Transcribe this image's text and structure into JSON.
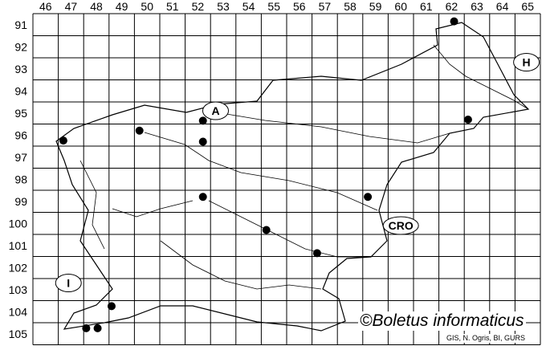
{
  "map": {
    "columns": [
      46,
      47,
      48,
      49,
      50,
      51,
      52,
      53,
      54,
      55,
      56,
      57,
      58,
      59,
      60,
      61,
      62,
      63,
      64,
      65
    ],
    "rows": [
      91,
      92,
      93,
      94,
      95,
      96,
      97,
      98,
      99,
      100,
      101,
      102,
      103,
      104,
      105
    ],
    "country_labels": [
      {
        "label": "A",
        "col": 52.7,
        "row": 94.9
      },
      {
        "label": "H",
        "col": 64.95,
        "row": 92.7
      },
      {
        "label": "CRO",
        "col": 60.0,
        "row": 100.1
      },
      {
        "label": "I",
        "col": 46.9,
        "row": 102.7
      }
    ],
    "occurrences": [
      {
        "col": 46.7,
        "row": 96.25
      },
      {
        "col": 49.7,
        "row": 95.8
      },
      {
        "col": 52.2,
        "row": 95.35
      },
      {
        "col": 52.2,
        "row": 96.3
      },
      {
        "col": 52.2,
        "row": 98.8
      },
      {
        "col": 54.7,
        "row": 100.3
      },
      {
        "col": 56.7,
        "row": 101.35
      },
      {
        "col": 58.7,
        "row": 98.8
      },
      {
        "col": 62.65,
        "row": 95.3
      },
      {
        "col": 62.1,
        "row": 90.85
      },
      {
        "col": 48.6,
        "row": 103.75
      },
      {
        "col": 47.6,
        "row": 104.75
      },
      {
        "col": 48.05,
        "row": 104.75
      }
    ],
    "colors": {
      "grid": "#000000",
      "marker": "#000000",
      "border": "#000000"
    }
  },
  "credit": "©Boletus informaticus",
  "source": "GIS, N. Ogris, BI, GURS"
}
